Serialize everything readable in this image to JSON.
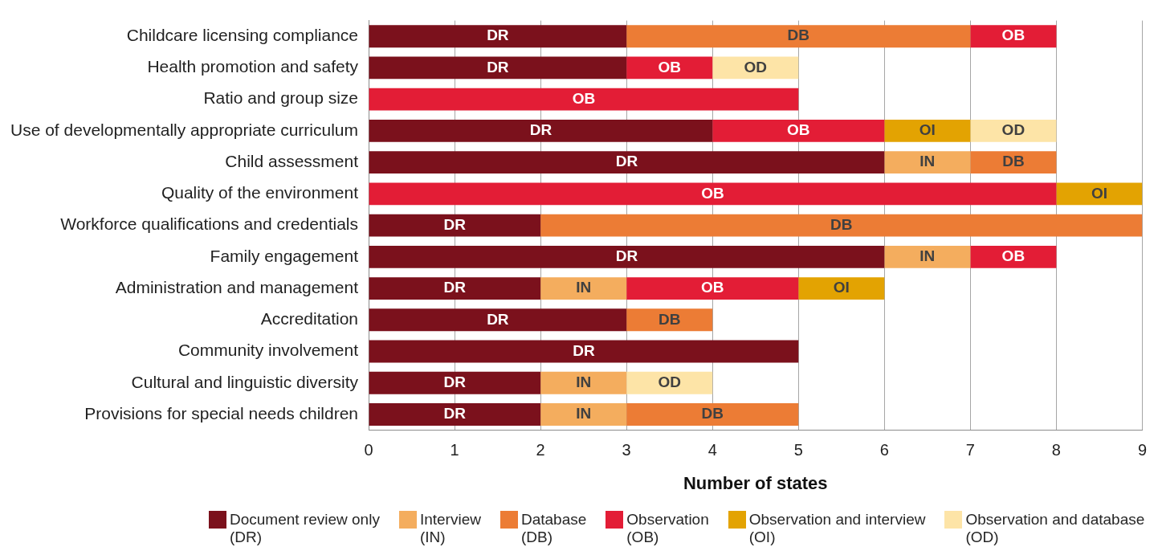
{
  "chart_data": {
    "type": "bar",
    "orientation": "horizontal",
    "stacked": true,
    "xlabel": "Number of states",
    "categories": [
      "Childcare licensing compliance",
      "Health promotion and safety",
      "Ratio and group size",
      "Use of developmentally appropriate curriculum",
      "Child assessment",
      "Quality of the environment",
      "Workforce qualifications and credentials",
      "Family engagement",
      "Administration and management",
      "Accreditation",
      "Community involvement",
      "Cultural and linguistic diversity",
      "Provisions for special needs children"
    ],
    "xlim": [
      0,
      9
    ],
    "xticks": [
      0,
      1,
      2,
      3,
      4,
      5,
      6,
      7,
      8,
      9
    ],
    "grid": "x",
    "legend": "bottom",
    "series": [
      {
        "name": "Document review only (DR)",
        "color": "#7b111c",
        "values": [
          3,
          3,
          null,
          4,
          6,
          null,
          2,
          6,
          2,
          3,
          5,
          2,
          2
        ],
        "value_labels": [
          "DR",
          "DR",
          null,
          "DR",
          "DR",
          null,
          "DR",
          "DR",
          "DR",
          "DR",
          "DR",
          "DR",
          "DR"
        ]
      },
      {
        "name": "Interview (IN)",
        "color": "#f4ad5e",
        "values": [
          null,
          null,
          null,
          null,
          1,
          null,
          null,
          1,
          1,
          null,
          null,
          1,
          1
        ],
        "value_labels": [
          null,
          null,
          null,
          null,
          "IN",
          null,
          null,
          "IN",
          "IN",
          null,
          null,
          "IN",
          "IN"
        ]
      },
      {
        "name": "Database (DB)",
        "color": "#ec7c35",
        "values": [
          4,
          null,
          null,
          null,
          1,
          null,
          7,
          null,
          null,
          1,
          null,
          null,
          2
        ],
        "value_labels": [
          "DB",
          null,
          null,
          null,
          "DB",
          null,
          "DB",
          null,
          null,
          "DB",
          null,
          null,
          "DB"
        ]
      },
      {
        "name": "Observation (OB)",
        "color": "#e31d36",
        "values": [
          1,
          1,
          5,
          2,
          null,
          8,
          null,
          1,
          2,
          null,
          null,
          null,
          null
        ],
        "value_labels": [
          "OB",
          "OB",
          "OB",
          "OB",
          null,
          "OB",
          null,
          "OB",
          "OB",
          null,
          null,
          null,
          null
        ]
      },
      {
        "name": "Observation and interview (OI)",
        "color": "#e3a302",
        "values": [
          null,
          null,
          null,
          1,
          null,
          1,
          null,
          null,
          1,
          null,
          null,
          null,
          null
        ],
        "value_labels": [
          null,
          null,
          null,
          "OI",
          null,
          "OI",
          null,
          null,
          "OI",
          null,
          null,
          null,
          null
        ]
      },
      {
        "name": "Observation and database (OD)",
        "color": "#fde4a7",
        "values": [
          null,
          1,
          null,
          1,
          null,
          null,
          null,
          null,
          null,
          null,
          null,
          1,
          null
        ],
        "value_labels": [
          null,
          "OD",
          null,
          "OD",
          null,
          null,
          null,
          null,
          null,
          null,
          null,
          "OD",
          null
        ]
      }
    ]
  }
}
